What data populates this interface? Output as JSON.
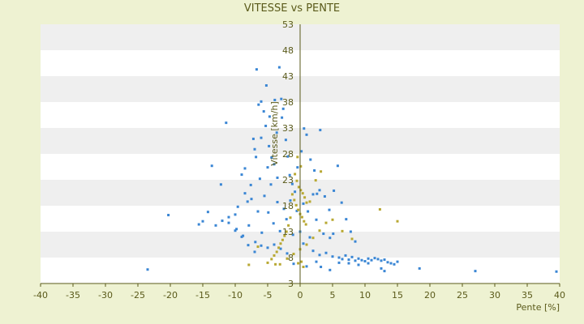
{
  "chart_data": {
    "type": "scatter",
    "title": "VITESSE vs PENTE",
    "xlabel": "Pente [%]",
    "ylabel": "Vitesse [km/h]",
    "xlim": [
      -40,
      40
    ],
    "ylim": [
      3,
      53
    ],
    "x_ticks": [
      -40,
      -35,
      -30,
      -25,
      -20,
      -15,
      -10,
      -5,
      0,
      5,
      10,
      15,
      20,
      25,
      30,
      35,
      40
    ],
    "y_ticks": [
      3,
      8,
      13,
      18,
      23,
      28,
      33,
      38,
      43,
      48,
      53
    ],
    "grid": "horizontal bands",
    "legend": "none",
    "colors": {
      "background": "#eef2d2",
      "plot_band_light": "#ffffff",
      "plot_band_dark": "#efefef",
      "axis": "#5a5a1a",
      "series_blue": "#3a86d4",
      "series_gold": "#b8a832"
    },
    "series": [
      {
        "color": "#3a86d4",
        "points": [
          [
            -23.5,
            5.7
          ],
          [
            -20.3,
            16.2
          ],
          [
            -15.6,
            14.4
          ],
          [
            -15.0,
            15.0
          ],
          [
            -14.2,
            16.8
          ],
          [
            -13.6,
            25.7
          ],
          [
            -12.2,
            22.1
          ],
          [
            -11.4,
            34.0
          ],
          [
            -11.0,
            15.8
          ],
          [
            -10.0,
            16.3
          ],
          [
            -9.6,
            17.8
          ],
          [
            -9.0,
            24.0
          ],
          [
            -8.5,
            25.2
          ],
          [
            -8.1,
            18.8
          ],
          [
            -7.6,
            22.0
          ],
          [
            -7.2,
            30.9
          ],
          [
            -6.8,
            27.4
          ],
          [
            -6.4,
            37.5
          ],
          [
            -6.0,
            38.1
          ],
          [
            -5.6,
            36.2
          ],
          [
            -5.2,
            41.2
          ],
          [
            -4.8,
            29.5
          ],
          [
            -4.4,
            27.3
          ],
          [
            -4.0,
            26.0
          ],
          [
            -3.6,
            32.1
          ],
          [
            -3.2,
            44.7
          ],
          [
            -2.9,
            38.6
          ],
          [
            -2.6,
            36.7
          ],
          [
            -2.2,
            30.7
          ],
          [
            -1.9,
            27.5
          ],
          [
            -6.7,
            44.3
          ],
          [
            -1.6,
            23.9
          ],
          [
            -1.2,
            22.2
          ],
          [
            -0.8,
            20.7
          ],
          [
            -0.4,
            25.4
          ],
          [
            0.2,
            28.5
          ],
          [
            0.6,
            32.9
          ],
          [
            1.0,
            31.7
          ],
          [
            1.6,
            26.9
          ],
          [
            2.2,
            24.8
          ],
          [
            2.6,
            20.3
          ],
          [
            3.1,
            32.6
          ],
          [
            3.8,
            19.8
          ],
          [
            4.5,
            17.2
          ],
          [
            5.2,
            20.9
          ],
          [
            5.8,
            25.7
          ],
          [
            6.4,
            18.6
          ],
          [
            7.1,
            15.4
          ],
          [
            7.8,
            13.0
          ],
          [
            8.5,
            11.1
          ],
          [
            -9.8,
            13.5
          ],
          [
            -8.8,
            12.2
          ],
          [
            -7.9,
            14.2
          ],
          [
            -6.9,
            11.0
          ],
          [
            -5.9,
            12.8
          ],
          [
            -4.9,
            16.7
          ],
          [
            -4.1,
            14.6
          ],
          [
            -3.1,
            13.1
          ],
          [
            -2.1,
            15.4
          ],
          [
            -1.1,
            12.4
          ],
          [
            0.5,
            10.7
          ],
          [
            1.5,
            11.9
          ],
          [
            2.5,
            15.3
          ],
          [
            3.6,
            12.6
          ],
          [
            4.6,
            11.8
          ],
          [
            5.1,
            12.6
          ],
          [
            0.0,
            13.0
          ],
          [
            2.0,
            9.3
          ],
          [
            3.0,
            8.5
          ],
          [
            4.0,
            8.9
          ],
          [
            5.0,
            8.2
          ],
          [
            6.0,
            8.0
          ],
          [
            6.5,
            7.7
          ],
          [
            7.0,
            8.4
          ],
          [
            7.5,
            7.6
          ],
          [
            8.0,
            8.1
          ],
          [
            8.5,
            7.4
          ],
          [
            9.0,
            7.8
          ],
          [
            9.5,
            7.5
          ],
          [
            10.0,
            7.3
          ],
          [
            10.5,
            7.8
          ],
          [
            11.0,
            7.5
          ],
          [
            11.5,
            7.9
          ],
          [
            12.0,
            7.7
          ],
          [
            12.5,
            7.4
          ],
          [
            13.0,
            7.6
          ],
          [
            13.5,
            7.1
          ],
          [
            14.0,
            6.9
          ],
          [
            14.5,
            6.7
          ],
          [
            15.0,
            7.2
          ],
          [
            3.2,
            6.2
          ],
          [
            4.6,
            5.6
          ],
          [
            6.0,
            7.0
          ],
          [
            7.5,
            6.9
          ],
          [
            9.0,
            6.6
          ],
          [
            10.5,
            6.9
          ],
          [
            12.5,
            5.9
          ],
          [
            13.0,
            5.4
          ],
          [
            18.4,
            5.9
          ],
          [
            27.0,
            5.4
          ],
          [
            39.5,
            5.3
          ],
          [
            1.0,
            6.3
          ],
          [
            2.5,
            7.2
          ],
          [
            -1.0,
            6.8
          ],
          [
            -2.0,
            8.8
          ],
          [
            -3.0,
            9.7
          ],
          [
            -4.0,
            10.5
          ],
          [
            -5.0,
            9.9
          ],
          [
            -6.0,
            10.3
          ],
          [
            -7.0,
            9.1
          ],
          [
            -8.0,
            10.4
          ],
          [
            -9.0,
            12.0
          ],
          [
            -10.0,
            13.2
          ],
          [
            -11.0,
            14.7
          ],
          [
            -12.0,
            15.1
          ],
          [
            -13.0,
            14.2
          ],
          [
            -3.5,
            18.7
          ],
          [
            -2.5,
            17.4
          ],
          [
            -1.5,
            19.0
          ],
          [
            -0.5,
            17.0
          ],
          [
            0.5,
            18.4
          ],
          [
            1.2,
            16.9
          ],
          [
            2.0,
            20.2
          ],
          [
            3.0,
            21.0
          ],
          [
            -5.5,
            19.9
          ],
          [
            -6.5,
            16.9
          ],
          [
            -7.5,
            19.3
          ],
          [
            -8.5,
            20.4
          ],
          [
            -4.5,
            22.1
          ],
          [
            -3.5,
            23.4
          ],
          [
            -6.2,
            23.2
          ],
          [
            -5.0,
            25.4
          ],
          [
            -7.0,
            28.9
          ],
          [
            -6.0,
            31.1
          ],
          [
            -5.3,
            33.4
          ],
          [
            -4.7,
            35.2
          ],
          [
            -3.9,
            38.4
          ],
          [
            -2.8,
            35.0
          ]
        ]
      },
      {
        "color": "#b8a832",
        "points": [
          [
            -0.8,
            24.1
          ],
          [
            -0.5,
            22.8
          ],
          [
            -0.2,
            21.6
          ],
          [
            0.1,
            21.0
          ],
          [
            0.4,
            20.4
          ],
          [
            0.7,
            19.6
          ],
          [
            1.0,
            18.6
          ],
          [
            -1.2,
            20.2
          ],
          [
            -0.9,
            19.1
          ],
          [
            -0.6,
            18.1
          ],
          [
            -0.3,
            17.2
          ],
          [
            0.0,
            16.4
          ],
          [
            0.3,
            15.8
          ],
          [
            0.6,
            15.0
          ],
          [
            0.9,
            14.4
          ],
          [
            -1.5,
            15.7
          ],
          [
            -1.8,
            14.2
          ],
          [
            -2.1,
            13.0
          ],
          [
            -2.4,
            12.2
          ],
          [
            -2.7,
            11.4
          ],
          [
            -3.0,
            10.7
          ],
          [
            -3.3,
            9.9
          ],
          [
            -3.6,
            9.1
          ],
          [
            -4.0,
            8.4
          ],
          [
            -4.4,
            7.7
          ],
          [
            -5.0,
            7.0
          ],
          [
            -6.5,
            10.1
          ],
          [
            -7.9,
            6.6
          ],
          [
            -3.8,
            6.7
          ],
          [
            -3.1,
            6.7
          ],
          [
            -2.0,
            7.8
          ],
          [
            -1.0,
            8.7
          ],
          [
            0.0,
            9.6
          ],
          [
            1.0,
            10.5
          ],
          [
            2.0,
            11.8
          ],
          [
            3.0,
            13.2
          ],
          [
            4.0,
            14.7
          ],
          [
            5.0,
            15.3
          ],
          [
            6.5,
            13.1
          ],
          [
            8.0,
            11.6
          ],
          [
            12.3,
            17.3
          ],
          [
            15.0,
            15.0
          ],
          [
            0.2,
            7.2
          ],
          [
            0.5,
            6.2
          ],
          [
            -0.3,
            6.9
          ],
          [
            1.5,
            18.8
          ],
          [
            2.4,
            22.9
          ],
          [
            3.2,
            24.6
          ],
          [
            -0.4,
            27.4
          ],
          [
            0.1,
            25.6
          ]
        ]
      }
    ]
  }
}
